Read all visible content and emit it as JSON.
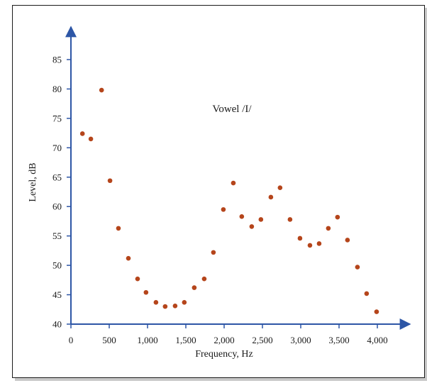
{
  "chart_data": {
    "type": "scatter",
    "xlabel": "Frequency, Hz",
    "ylabel": "Level, dB",
    "annotation": "Vowel /I/",
    "xlim": [
      0,
      4300
    ],
    "ylim": [
      40,
      90
    ],
    "xticks": [
      0,
      500,
      1000,
      1500,
      2000,
      2500,
      3000,
      3500,
      4000
    ],
    "xtick_labels": [
      "0",
      "500",
      "1,000",
      "1,500",
      "2,000",
      "2,500",
      "3,000",
      "3,500",
      "4,000"
    ],
    "yticks": [
      40,
      45,
      50,
      55,
      60,
      65,
      70,
      75,
      80,
      85
    ],
    "ytick_labels": [
      "40",
      "45",
      "50",
      "55",
      "60",
      "65",
      "70",
      "75",
      "80",
      "85"
    ],
    "grid": false,
    "marker_color": "#b5451b",
    "axis_color": "#2d56a6",
    "x": [
      150,
      260,
      400,
      510,
      620,
      750,
      870,
      980,
      1110,
      1230,
      1360,
      1480,
      1610,
      1740,
      1860,
      1990,
      2120,
      2230,
      2360,
      2480,
      2610,
      2730,
      2860,
      2990,
      3120,
      3240,
      3360,
      3480,
      3610,
      3740,
      3860,
      3990
    ],
    "y": [
      72.4,
      71.5,
      79.8,
      64.4,
      56.3,
      51.2,
      47.7,
      45.4,
      43.7,
      43.0,
      43.1,
      43.7,
      46.2,
      47.7,
      52.2,
      59.5,
      64.0,
      58.3,
      56.6,
      57.8,
      61.6,
      63.2,
      57.8,
      54.6,
      53.4,
      53.7,
      56.3,
      58.2,
      54.3,
      49.7,
      45.2,
      42.1
    ]
  }
}
